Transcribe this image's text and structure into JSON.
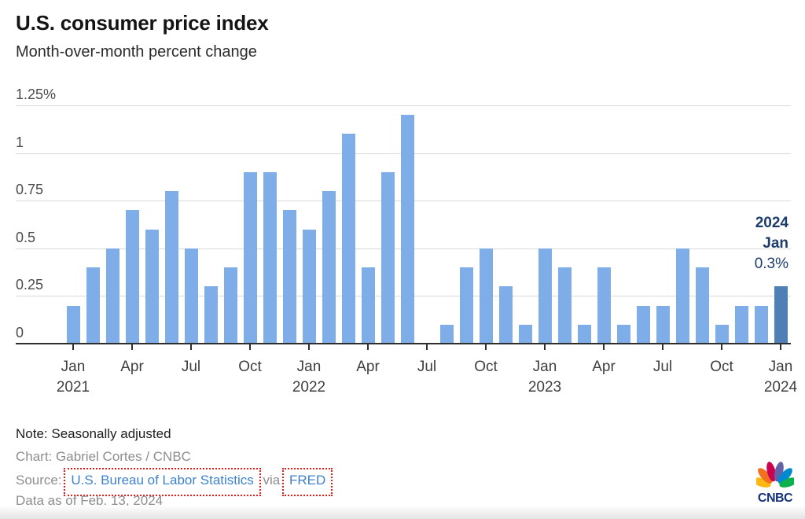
{
  "header": {
    "title": "U.S. consumer price index",
    "subtitle": "Month-over-month percent change"
  },
  "chart_data": {
    "type": "bar",
    "title": "U.S. consumer price index",
    "subtitle": "Month-over-month percent change",
    "unit": "percent",
    "ylim": [
      0,
      1.25
    ],
    "grid": true,
    "y_ticks": [
      {
        "value": 0,
        "label": "0"
      },
      {
        "value": 0.25,
        "label": "0.25"
      },
      {
        "value": 0.5,
        "label": "0.5"
      },
      {
        "value": 0.75,
        "label": "0.75"
      },
      {
        "value": 1,
        "label": "1"
      },
      {
        "value": 1.25,
        "label": "1.25%"
      }
    ],
    "categories": [
      "Jan 2021",
      "Feb 2021",
      "Mar 2021",
      "Apr 2021",
      "May 2021",
      "Jun 2021",
      "Jul 2021",
      "Aug 2021",
      "Sep 2021",
      "Oct 2021",
      "Nov 2021",
      "Dec 2021",
      "Jan 2022",
      "Feb 2022",
      "Mar 2022",
      "Apr 2022",
      "May 2022",
      "Jun 2022",
      "Jul 2022",
      "Aug 2022",
      "Sep 2022",
      "Oct 2022",
      "Nov 2022",
      "Dec 2022",
      "Jan 2023",
      "Feb 2023",
      "Mar 2023",
      "Apr 2023",
      "May 2023",
      "Jun 2023",
      "Jul 2023",
      "Aug 2023",
      "Sep 2023",
      "Oct 2023",
      "Nov 2023",
      "Dec 2023",
      "Jan 2024"
    ],
    "values": [
      0.2,
      0.4,
      0.5,
      0.7,
      0.6,
      0.8,
      0.5,
      0.3,
      0.4,
      0.9,
      0.9,
      0.7,
      0.6,
      0.8,
      1.1,
      0.4,
      0.9,
      1.2,
      0.0,
      0.1,
      0.4,
      0.5,
      0.3,
      0.1,
      0.5,
      0.4,
      0.1,
      0.4,
      0.1,
      0.2,
      0.2,
      0.5,
      0.4,
      0.1,
      0.2,
      0.2,
      0.3
    ],
    "x_ticks": [
      {
        "month": "Jan",
        "year": "2021"
      },
      {
        "month": "Apr",
        "year": ""
      },
      {
        "month": "Jul",
        "year": ""
      },
      {
        "month": "Oct",
        "year": ""
      },
      {
        "month": "Jan",
        "year": "2022"
      },
      {
        "month": "Apr",
        "year": ""
      },
      {
        "month": "Jul",
        "year": ""
      },
      {
        "month": "Oct",
        "year": ""
      },
      {
        "month": "Jan",
        "year": "2023"
      },
      {
        "month": "Apr",
        "year": ""
      },
      {
        "month": "Jul",
        "year": ""
      },
      {
        "month": "Oct",
        "year": ""
      },
      {
        "month": "Jan",
        "year": "2024"
      }
    ],
    "highlight_index": 36,
    "colors": {
      "bar": "#7fade8",
      "highlight": "#4e80b6",
      "gridline": "#d9d9d9",
      "axis": "#2e2e2e"
    },
    "annotation": {
      "line1": "2024",
      "line2": "Jan",
      "line3": "0.3%",
      "color": "#1c3d6c"
    },
    "legend": "none"
  },
  "footer": {
    "note": "Note: Seasonally adjusted",
    "credit": "Chart: Gabriel Cortes / CNBC",
    "source_prefix": "Source:",
    "source_link1": "U.S. Bureau of Labor Statistics",
    "source_via": "via",
    "source_link2": "FRED",
    "data_as_of": "Data as of Feb. 13, 2024"
  },
  "logo": {
    "text": "CNBC"
  }
}
